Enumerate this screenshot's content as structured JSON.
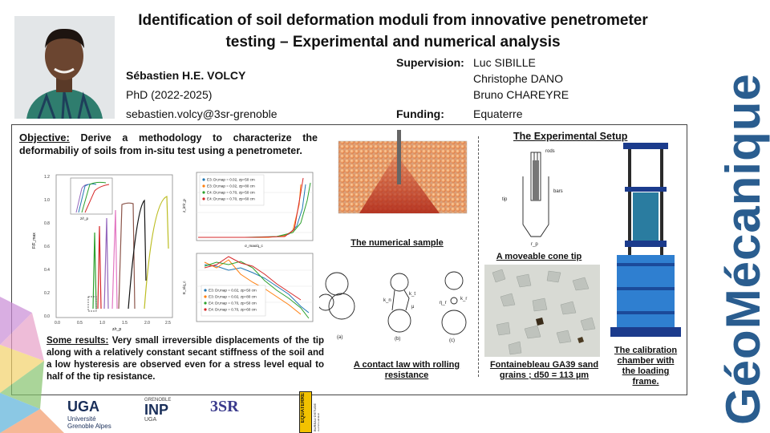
{
  "header": {
    "title": "Identification of soil deformation moduli from innovative penetrometer testing – Experimental and numerical analysis",
    "author_name": "Sébastien H.E. VOLCY",
    "author_role": "PhD (2022-2025)",
    "author_email": "sebastien.volcy@3sr-grenoble",
    "supervision_label": "Supervision:",
    "supervisors": [
      "Luc SIBILLE",
      "Christophe DANO",
      "Bruno CHAREYRE"
    ],
    "funding_label": "Funding:",
    "funding": "Equaterre"
  },
  "content": {
    "objective_label": "Objective:",
    "objective_text": " Derive a methodology to characterize the deformabiliy of soils from in-situ test using a penetrometer.",
    "results_label": "Some results:",
    "results_text": " Very small irreversible displacements of the tip along with a relatively constant secant stiffness of the soil and a low hysteresis are observed even for a stress level equal to half of the tip resistance.",
    "numerical_sample_caption": "The numerical sample",
    "contact_law_caption": "A contact law with rolling resistance",
    "setup_title": "The Experimental Setup",
    "cone_tip_caption": "A moveable cone tip",
    "sand_caption": "Fontainebleau GA39 sand grains ; d50 = 113 µm",
    "chamber_caption": "The calibration chamber with the loading frame.",
    "tip_labels": {
      "rods": "rods",
      "tip": "tip",
      "bars": "bars",
      "rp": "r_p"
    },
    "contact_labels": {
      "a": "(a)",
      "b": "(b)",
      "c": "(c)",
      "kn": "k_n",
      "kt": "k_t",
      "mu": "μ",
      "kr": "k_r",
      "eta": "η_r"
    }
  },
  "charts": {
    "legend": [
      "E3: Dr,map = 0.02, zp=50 cm",
      "E3: Dr,map = 0.02, zp=80 cm",
      "E4: Dr,map = 0.70, zp=50 cm",
      "E4: Dr,map = 0.70, zp=60 cm"
    ],
    "series_colors": [
      "#1f77b4",
      "#ff7f0e",
      "#2ca02c",
      "#d62728"
    ],
    "left_chart": {
      "ylabel": "F/F_max",
      "xlabel": "z/r_p",
      "yticks": [
        "0.0",
        "0.2",
        "0.4",
        "0.6",
        "0.8",
        "1.0",
        "1.2"
      ],
      "xticks": [
        "0.0",
        "0.5",
        "1.0",
        "1.5",
        "2.0",
        "2.5"
      ],
      "inset_xlabel": "z/r_p",
      "inset_ylabel": "F/F_max"
    },
    "top_right": {
      "xlabel": "σ_max/q_c",
      "ylabel": "z_irr/r_p"
    },
    "bottom_right": {
      "ylabel": "E_s/q_c"
    }
  },
  "logos": {
    "uga": "UGA",
    "uga_sub1": "Université",
    "uga_sub2": "Grenoble Alpes",
    "inp_top": "GRENOBLE",
    "inp": "INP",
    "inp_sub": "UGA",
    "tsr": "3SR",
    "equaterre": "EQUATERRE",
    "equaterre_sub": "BUREAU D'ETUDE INGENIERIE GEOTECHNIQUE",
    "brand": "GéoMécanique"
  }
}
